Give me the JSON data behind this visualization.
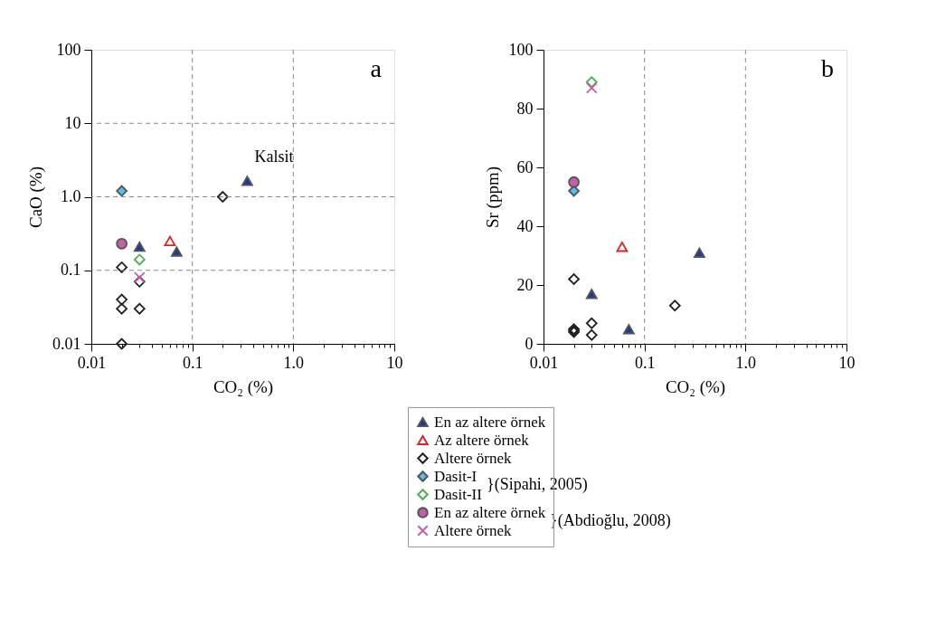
{
  "chart_data": [
    {
      "type": "scatter",
      "title": "a",
      "xlabel": "CO₂ (%)",
      "ylabel": "CaO (%)",
      "log": "xy",
      "grid": true,
      "legend": "bottom",
      "xlim": [
        0.01,
        10
      ],
      "ylim": [
        0.01,
        100
      ],
      "xticks": [
        0.01,
        {
          "value": 0.02,
          "label": null
        },
        {
          "value": 0.03,
          "label": null
        },
        {
          "value": 0.04,
          "label": null
        },
        {
          "value": 0.05,
          "label": null
        },
        {
          "value": 0.06,
          "label": null
        },
        {
          "value": 0.07,
          "label": null
        },
        {
          "value": 0.08,
          "label": null
        },
        {
          "value": 0.09,
          "label": null
        },
        0.1,
        {
          "value": 0.2,
          "label": null
        },
        {
          "value": 0.3,
          "label": null
        },
        {
          "value": 0.4,
          "label": null
        },
        {
          "value": 0.5,
          "label": null
        },
        {
          "value": 0.6,
          "label": null
        },
        {
          "value": 0.7,
          "label": null
        },
        {
          "value": 0.8,
          "label": null
        },
        {
          "value": 0.9,
          "label": null
        },
        {
          "value": 1,
          "label": "1.0"
        },
        {
          "value": 2,
          "label": null
        },
        {
          "value": 3,
          "label": null
        },
        {
          "value": 4,
          "label": null
        },
        {
          "value": 5,
          "label": null
        },
        {
          "value": 6,
          "label": null
        },
        {
          "value": 7,
          "label": null
        },
        {
          "value": 8,
          "label": null
        },
        {
          "value": 9,
          "label": null
        },
        10
      ],
      "yticks": [
        0.01,
        0.1,
        {
          "value": 1,
          "label": "1.0"
        },
        10,
        100
      ],
      "annotations": [
        {
          "text": "Kalsit",
          "x": 0.35,
          "y": 1.65
        },
        "}(Sipahi, 2005)",
        "}(Abdioğlu, 2008)"
      ],
      "series": [
        {
          "name": "En az altere örnek",
          "color": "#1f3a93",
          "marker": "triangle",
          "x": [
            0.03,
            0.07,
            0.35
          ],
          "values": [
            0.21,
            0.18,
            1.65
          ]
        },
        {
          "name": "Az altere örnek",
          "color": "#d62728",
          "marker": "triangle-open",
          "x": [
            0.06
          ],
          "values": [
            0.25
          ]
        },
        {
          "name": "Altere örnek",
          "color": "#222222",
          "marker": "diamond-open",
          "x": [
            0.2,
            0.02,
            0.03,
            0.02,
            0.02,
            0.03,
            0.02
          ],
          "values": [
            1.0,
            0.11,
            0.07,
            0.04,
            0.03,
            0.03,
            0.01
          ]
        },
        {
          "name": "Dasit-I",
          "color": "#56bfe8",
          "marker": "diamond",
          "x": [
            0.02
          ],
          "values": [
            1.2
          ]
        },
        {
          "name": "Dasit-II",
          "color": "#4caf50",
          "marker": "diamond-open",
          "x": [
            0.03
          ],
          "values": [
            0.14
          ]
        },
        {
          "name": "En az altere örnek",
          "color": "#c060a8",
          "marker": "circle",
          "x": [
            0.02
          ],
          "values": [
            0.23
          ]
        },
        {
          "name": "Altere örnek",
          "color": "#c060a8",
          "marker": "cross",
          "x": [
            0.03
          ],
          "values": [
            0.08
          ]
        }
      ]
    },
    {
      "type": "scatter",
      "title": "b",
      "xlabel": "CO₂ (%)",
      "ylabel": "Sr (ppm)",
      "log": "x",
      "grid": "x",
      "xlim": [
        0.01,
        10
      ],
      "ylim": [
        0,
        100
      ],
      "xticks": [
        0.01,
        {
          "value": 0.02,
          "label": null
        },
        {
          "value": 0.03,
          "label": null
        },
        {
          "value": 0.04,
          "label": null
        },
        {
          "value": 0.05,
          "label": null
        },
        {
          "value": 0.06,
          "label": null
        },
        {
          "value": 0.07,
          "label": null
        },
        {
          "value": 0.08,
          "label": null
        },
        {
          "value": 0.09,
          "label": null
        },
        0.1,
        {
          "value": 0.2,
          "label": null
        },
        {
          "value": 0.3,
          "label": null
        },
        {
          "value": 0.4,
          "label": null
        },
        {
          "value": 0.5,
          "label": null
        },
        {
          "value": 0.6,
          "label": null
        },
        {
          "value": 0.7,
          "label": null
        },
        {
          "value": 0.8,
          "label": null
        },
        {
          "value": 0.9,
          "label": null
        },
        {
          "value": 1,
          "label": "1.0"
        },
        {
          "value": 2,
          "label": null
        },
        {
          "value": 3,
          "label": null
        },
        {
          "value": 4,
          "label": null
        },
        {
          "value": 5,
          "label": null
        },
        {
          "value": 6,
          "label": null
        },
        {
          "value": 7,
          "label": null
        },
        {
          "value": 8,
          "label": null
        },
        {
          "value": 9,
          "label": null
        },
        10
      ],
      "yticks": [
        0,
        20,
        40,
        60,
        80,
        100
      ],
      "series": [
        {
          "color": "#1f3a93",
          "marker": "triangle",
          "x": [
            0.03,
            0.07,
            0.35
          ],
          "values": [
            17,
            5,
            31
          ]
        },
        {
          "color": "#d62728",
          "marker": "triangle-open",
          "x": [
            0.06
          ],
          "values": [
            33
          ]
        },
        {
          "color": "#222222",
          "marker": "diamond-open",
          "x": [
            0.02,
            0.2,
            0.03,
            0.03,
            0.02,
            0.02,
            0.02
          ],
          "values": [
            22,
            13,
            7,
            3,
            5,
            4.5,
            4
          ]
        },
        {
          "color": "#56bfe8",
          "marker": "diamond",
          "x": [
            0.02
          ],
          "values": [
            52
          ]
        },
        {
          "color": "#4caf50",
          "marker": "diamond-open",
          "x": [
            0.03
          ],
          "values": [
            89
          ]
        },
        {
          "color": "#c060a8",
          "marker": "circle",
          "x": [
            0.02
          ],
          "values": [
            55
          ]
        },
        {
          "color": "#c060a8",
          "marker": "cross",
          "x": [
            0.03
          ],
          "values": [
            87
          ]
        }
      ]
    }
  ]
}
